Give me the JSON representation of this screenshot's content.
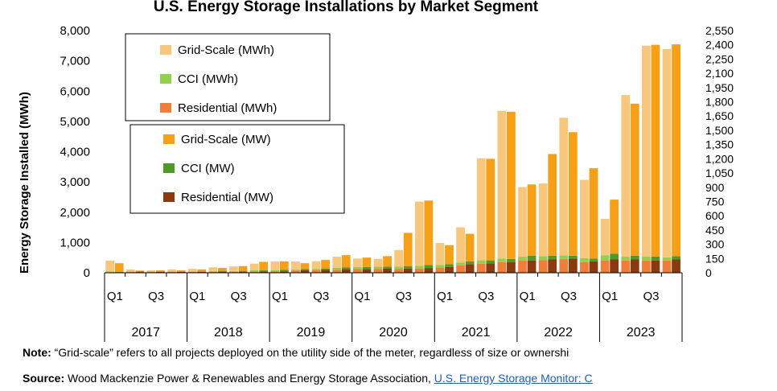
{
  "chart_data": {
    "type": "bar",
    "title": "U.S. Energy Storage Installations by Market Segment",
    "ylabel": "Energy Storage Installed (MWh)",
    "ylim": [
      0,
      8000
    ],
    "y2lim": [
      0,
      2550
    ],
    "yticks": [
      "0",
      "1,000",
      "2,000",
      "3,000",
      "4,000",
      "5,000",
      "6,000",
      "7,000",
      "8,000"
    ],
    "y2ticks": [
      "0",
      "150",
      "300",
      "450",
      "600",
      "750",
      "900",
      "1,050",
      "1,200",
      "1,350",
      "1,500",
      "1,650",
      "1,800",
      "1,950",
      "2,100",
      "2,250",
      "2,400",
      "2,550"
    ],
    "quarter_labels": [
      "Q1",
      "Q3"
    ],
    "years": [
      "2017",
      "2018",
      "2019",
      "2020",
      "2021",
      "2022",
      "2023"
    ],
    "categories": [
      "2017 Q1",
      "2017 Q2",
      "2017 Q3",
      "2017 Q4",
      "2018 Q1",
      "2018 Q2",
      "2018 Q3",
      "2018 Q4",
      "2019 Q1",
      "2019 Q2",
      "2019 Q3",
      "2019 Q4",
      "2020 Q1",
      "2020 Q2",
      "2020 Q3",
      "2020 Q4",
      "2021 Q1",
      "2021 Q2",
      "2021 Q3",
      "2021 Q4",
      "2022 Q1",
      "2022 Q2",
      "2022 Q3",
      "2022 Q4",
      "2023 Q1",
      "2023 Q2",
      "2023 Q3",
      "2023 Q4"
    ],
    "mwh_series": [
      {
        "name": "Grid-Scale (MWh)",
        "color": "#f8c77e",
        "values": [
          360,
          70,
          40,
          60,
          80,
          120,
          150,
          220,
          290,
          260,
          250,
          370,
          280,
          260,
          550,
          2120,
          720,
          1160,
          3370,
          4880,
          2300,
          2400,
          4550,
          2590,
          1200,
          5340,
          6960,
          6880
        ]
      },
      {
        "name": "CCI (MWh)",
        "color": "#92d050",
        "values": [
          20,
          15,
          15,
          20,
          20,
          30,
          30,
          40,
          40,
          40,
          50,
          60,
          70,
          70,
          80,
          90,
          90,
          90,
          110,
          120,
          130,
          130,
          120,
          130,
          180,
          130,
          140,
          110
        ]
      },
      {
        "name": "Residential (MWh)",
        "color": "#f07d3a",
        "values": [
          20,
          25,
          25,
          30,
          30,
          30,
          30,
          40,
          40,
          70,
          80,
          100,
          120,
          130,
          120,
          140,
          170,
          250,
          300,
          350,
          400,
          420,
          450,
          350,
          400,
          400,
          400,
          400
        ]
      }
    ],
    "mw_series": [
      {
        "name": "Grid-Scale (MW)",
        "color": "#f5a016",
        "values": [
          90,
          10,
          10,
          10,
          20,
          30,
          50,
          90,
          90,
          60,
          90,
          130,
          100,
          110,
          350,
          680,
          200,
          290,
          1070,
          1550,
          750,
          1070,
          1300,
          950,
          570,
          1600,
          2230,
          2230
        ]
      },
      {
        "name": "CCI (MW)",
        "color": "#4e9a28",
        "values": [
          5,
          5,
          5,
          5,
          5,
          10,
          10,
          10,
          15,
          15,
          15,
          15,
          20,
          20,
          25,
          30,
          30,
          30,
          30,
          35,
          50,
          40,
          30,
          30,
          60,
          40,
          40,
          35
        ]
      },
      {
        "name": "Residential (MW)",
        "color": "#8b3a0f",
        "values": [
          5,
          8,
          10,
          10,
          10,
          10,
          10,
          15,
          15,
          25,
          30,
          40,
          40,
          45,
          45,
          50,
          60,
          90,
          100,
          110,
          130,
          140,
          150,
          120,
          140,
          140,
          130,
          140
        ]
      }
    ],
    "legend_placement": "top-left",
    "grid": false
  },
  "note": {
    "label": "Note:",
    "text": " “Grid-scale” refers to all projects deployed on the utility side of the meter, regardless of size or ownershi"
  },
  "source": {
    "label": "Source:",
    "text": " Wood Mackenzie Power & Renewables and Energy Storage Association, ",
    "link": "U.S. Energy Storage Monitor: C"
  }
}
